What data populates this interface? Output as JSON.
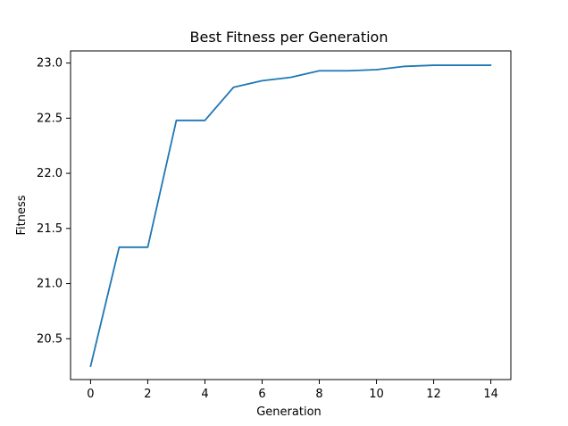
{
  "chart_data": {
    "type": "line",
    "title": "Best Fitness per Generation",
    "xlabel": "Generation",
    "ylabel": "Fitness",
    "xlim": [
      -0.7,
      14.7
    ],
    "ylim": [
      20.13,
      23.11
    ],
    "xticks": [
      0,
      2,
      4,
      6,
      8,
      10,
      12,
      14
    ],
    "yticks": [
      20.5,
      21.0,
      21.5,
      22.0,
      22.5,
      23.0
    ],
    "xtick_labels": [
      "0",
      "2",
      "4",
      "6",
      "8",
      "10",
      "12",
      "14"
    ],
    "ytick_labels": [
      "20.5",
      "21.0",
      "21.5",
      "22.0",
      "22.5",
      "23.0"
    ],
    "grid": false,
    "series": [
      {
        "color": "#1f77b4",
        "x": [
          0,
          1,
          2,
          3,
          4,
          5,
          6,
          7,
          8,
          9,
          10,
          11,
          12,
          13,
          14
        ],
        "y": [
          20.25,
          21.33,
          21.33,
          22.48,
          22.48,
          22.78,
          22.84,
          22.87,
          22.93,
          22.93,
          22.94,
          22.97,
          22.98,
          22.98,
          22.98
        ]
      }
    ]
  }
}
